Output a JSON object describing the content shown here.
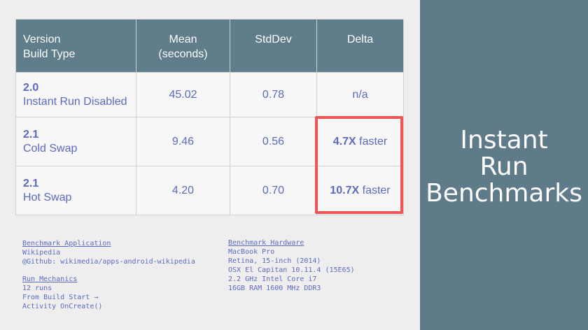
{
  "slide": {
    "title_lines": [
      "Instant",
      "Run",
      "Benchmarks"
    ]
  },
  "table": {
    "headers": [
      [
        "Version",
        "Build Type"
      ],
      [
        "Mean",
        "(seconds)"
      ],
      [
        "StdDev"
      ],
      [
        "Delta"
      ]
    ],
    "rows": [
      {
        "version": "2.0",
        "build_type": "Instant Run Disabled",
        "mean": "45.02",
        "stddev": "0.78",
        "delta_bold": "",
        "delta_rest": "n/a"
      },
      {
        "version": "2.1",
        "build_type": "Cold Swap",
        "mean": "9.46",
        "stddev": "0.56",
        "delta_bold": "4.7X",
        "delta_rest": " faster"
      },
      {
        "version": "2.1",
        "build_type": "Hot Swap",
        "mean": "4.20",
        "stddev": "0.70",
        "delta_bold": "10.7X",
        "delta_rest": " faster"
      }
    ]
  },
  "notes": {
    "benchmark_application": {
      "heading": "Benchmark Application",
      "lines": [
        "Wikipedia",
        "@Github: wikimedia/apps-android-wikipedia"
      ]
    },
    "run_mechanics": {
      "heading": "Run Mechanics",
      "lines": [
        "12 runs",
        "From Build Start →",
        "Activity OnCreate()"
      ]
    },
    "benchmark_hardware": {
      "heading": "Benchmark Hardware",
      "lines": [
        "MacBook Pro",
        "Retina, 15-inch (2014)",
        "OSX El Capitan 10.11.4 (15E65)",
        "2.2 GHz Intel Core i7",
        "16GB RAM 1600 MHz DDR3"
      ]
    }
  },
  "colors": {
    "header_bg": "#607d8b",
    "side_panel_bg": "#5f7a88",
    "accent_text": "#5c6bc0",
    "highlight_border": "#f05454"
  }
}
